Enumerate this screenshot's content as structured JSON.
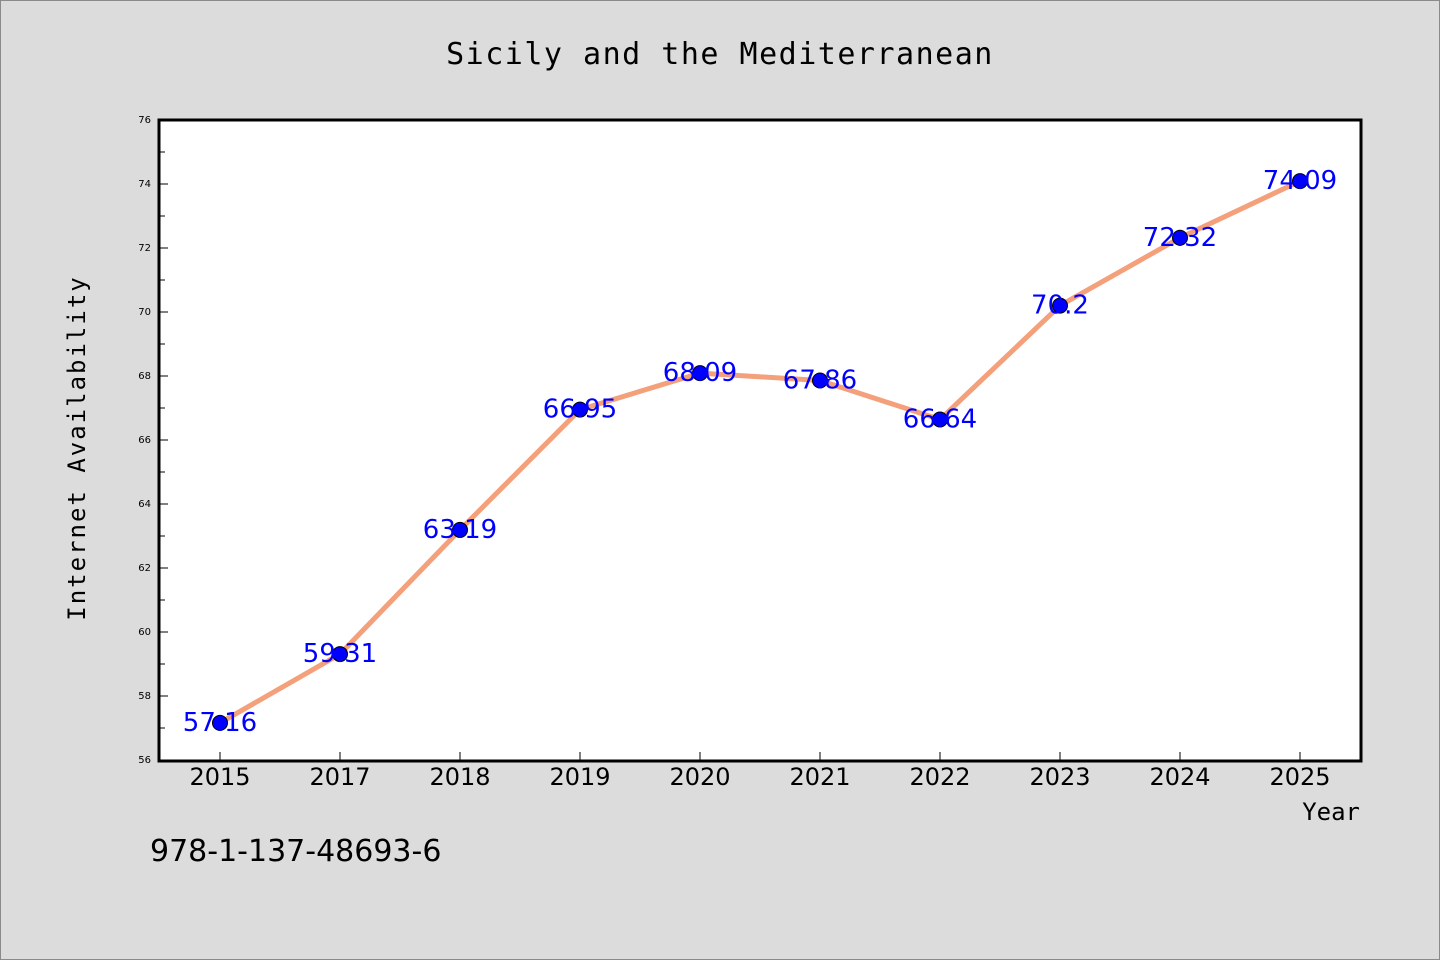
{
  "chart_data": {
    "type": "line",
    "title": "Sicily and the Mediterranean",
    "xlabel": "Year",
    "ylabel": "Internet Availability",
    "categories": [
      "2015",
      "2017",
      "2018",
      "2019",
      "2020",
      "2021",
      "2022",
      "2023",
      "2024",
      "2025"
    ],
    "values": [
      57.16,
      59.31,
      63.19,
      66.95,
      68.09,
      67.86,
      66.64,
      70.2,
      72.32,
      74.09
    ],
    "data_labels": [
      "57.16",
      "59.31",
      "63.19",
      "66.95",
      "68.09",
      "67.86",
      "66.64",
      "70.2",
      "72.32",
      "74.09"
    ],
    "ylim": [
      56,
      76
    ],
    "yticks": [
      "56",
      "58",
      "60",
      "62",
      "64",
      "66",
      "68",
      "70",
      "72",
      "74",
      "76"
    ],
    "grid": false,
    "legend": "none",
    "colors": {
      "line": "#f4a07a",
      "marker": "#0000ff",
      "label": "#0000ff",
      "background": "#dcdcdc",
      "plot_background": "#ffffff"
    }
  },
  "footer": {
    "isbn": "978-1-137-48693-6"
  }
}
